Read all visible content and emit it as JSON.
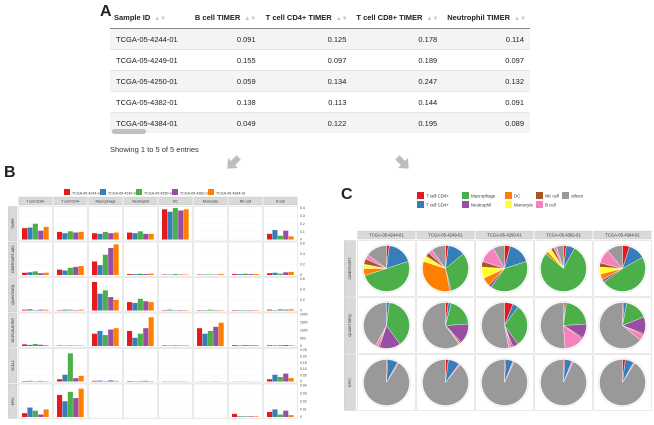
{
  "panel_letters": {
    "a": "A",
    "b": "B",
    "c": "C"
  },
  "table": {
    "columns": [
      "Sample ID",
      "B cell TIMER",
      "T cell CD4+ TIMER",
      "T cell CD8+ TIMER",
      "Neutrophil TIMER"
    ],
    "rows": [
      [
        "TCGA-05-4244-01",
        "0.091",
        "0.125",
        "0.178",
        "0.114"
      ],
      [
        "TCGA-05-4249-01",
        "0.155",
        "0.097",
        "0.189",
        "0.097"
      ],
      [
        "TCGA-05-4250-01",
        "0.059",
        "0.134",
        "0.247",
        "0.132"
      ],
      [
        "TCGA-05-4382-01",
        "0.138",
        "0.113",
        "0.144",
        "0.091"
      ],
      [
        "TCGA-05-4384-01",
        "0.049",
        "0.122",
        "0.195",
        "0.089"
      ]
    ],
    "info": "Showing 1 to 5 of 5 entries"
  },
  "chart_data": [
    {
      "type": "bar",
      "name": "panel-b",
      "legend": [
        "TCGA-05-4244-01",
        "TCGA-05-4249-01",
        "TCGA-05-4250-01",
        "TCGA-05-4382-01",
        "TCGA-05-4384-01"
      ],
      "colors": [
        "#e41a1c",
        "#377eb8",
        "#4daf4a",
        "#984ea3",
        "#ff7f00"
      ],
      "columns": [
        "T cell CD8+",
        "T cell CD4+",
        "Macrophage",
        "Neutrophil",
        "DC",
        "Monocyte",
        "NK cell",
        "B cell"
      ],
      "rows": [
        {
          "method": "TIMER",
          "ticks": [
            "0.4",
            "0.3",
            "0.2",
            "0.1",
            "0"
          ],
          "ymax": 0.5,
          "values": [
            [
              0.18,
              0.19,
              0.25,
              0.14,
              0.2
            ],
            [
              0.12,
              0.1,
              0.13,
              0.11,
              0.12
            ],
            [
              0.1,
              0.09,
              0.12,
              0.1,
              0.11
            ],
            [
              0.11,
              0.1,
              0.13,
              0.09,
              0.09
            ],
            [
              0.48,
              0.44,
              0.5,
              0.46,
              0.48
            ],
            [
              0,
              0,
              0,
              0,
              0
            ],
            [
              0,
              0,
              0,
              0,
              0
            ],
            [
              0.09,
              0.15,
              0.06,
              0.14,
              0.05
            ]
          ]
        },
        {
          "method": "CIBERSORT-ABS",
          "ticks": [
            "0.6",
            "0.4",
            "0.2",
            "0"
          ],
          "ymax": 0.7,
          "values": [
            [
              0.05,
              0.06,
              0.08,
              0.04,
              0.05
            ],
            [
              0.12,
              0.1,
              0.16,
              0.18,
              0.2
            ],
            [
              0.3,
              0.22,
              0.45,
              0.6,
              0.68
            ],
            [
              0.02,
              0.02,
              0.03,
              0.02,
              0.03
            ],
            [
              0.01,
              0.01,
              0.02,
              0.01,
              0.01
            ],
            [
              0.01,
              0.01,
              0.01,
              0.01,
              0.02
            ],
            [
              0.02,
              0.02,
              0.03,
              0.02,
              0.02
            ],
            [
              0.04,
              0.05,
              0.03,
              0.06,
              0.07
            ]
          ]
        },
        {
          "method": "QUANTISEQ",
          "ticks": [
            "0.6",
            "0.4",
            "0.2",
            "0"
          ],
          "ymax": 0.75,
          "values": [
            [
              0.02,
              0.03,
              0.01,
              0.02,
              0.02
            ],
            [
              0.01,
              0.02,
              0.02,
              0.01,
              0.02
            ],
            [
              0.68,
              0.4,
              0.48,
              0.32,
              0.25
            ],
            [
              0.2,
              0.18,
              0.28,
              0.22,
              0.2
            ],
            [
              0.01,
              0.02,
              0.01,
              0.01,
              0.01
            ],
            [
              0.01,
              0.01,
              0.02,
              0.01,
              0.01
            ],
            [
              0.01,
              0.01,
              0.01,
              0.01,
              0.01
            ],
            [
              0.02,
              0.01,
              0.03,
              0.02,
              0.03
            ]
          ]
        },
        {
          "method": "MCPCOUNTER",
          "ticks": [
            "2000",
            "1500",
            "1000",
            "500",
            "0"
          ],
          "ymax": 2300,
          "values": [
            [
              120,
              80,
              150,
              90,
              60
            ],
            [
              30,
              20,
              40,
              25,
              30
            ],
            [
              900,
              1100,
              800,
              1200,
              1300
            ],
            [
              1100,
              600,
              900,
              1300,
              2100
            ],
            [
              40,
              30,
              50,
              30,
              40
            ],
            [
              1300,
              900,
              1100,
              1400,
              1700
            ],
            [
              60,
              40,
              70,
              50,
              60
            ],
            [
              50,
              40,
              60,
              70,
              50
            ]
          ]
        },
        {
          "method": "XCELL",
          "ticks": [
            "0.25",
            "0.20",
            "0.15",
            "0.10",
            "0.05",
            "0"
          ],
          "ymax": 0.28,
          "values": [
            [
              0.004,
              0.006,
              0.003,
              0.005,
              0.004
            ],
            [
              0.02,
              0.06,
              0.25,
              0.03,
              0.05
            ],
            [
              0.006,
              0.008,
              0.004,
              0.01,
              0.006
            ],
            [
              0.004,
              0.003,
              0.005,
              0.006,
              0.004
            ],
            [
              0.002,
              0.002,
              0.002,
              0.002,
              0.002
            ],
            [
              0.001,
              0.002,
              0.001,
              0.002,
              0.001
            ],
            [
              0.001,
              0.001,
              0.002,
              0.001,
              0.001
            ],
            [
              0.02,
              0.06,
              0.04,
              0.07,
              0.03
            ]
          ]
        },
        {
          "method": "EPIC",
          "ticks": [
            "0.04",
            "0.03",
            "0.02",
            "0.01",
            "0"
          ],
          "ymax": 0.05,
          "values": [
            [
              0.006,
              0.015,
              0.01,
              0.004,
              0.012
            ],
            [
              0.035,
              0.025,
              0.04,
              0.03,
              0.045
            ],
            [
              0,
              0,
              0,
              0,
              0
            ],
            [
              0,
              0,
              0,
              0,
              0
            ],
            [
              0,
              0,
              0,
              0,
              0
            ],
            [
              0,
              0,
              0,
              0,
              0
            ],
            [
              0.005,
              0.001,
              0.001,
              0.001,
              0.001
            ],
            [
              0.008,
              0.012,
              0.004,
              0.01,
              0.003
            ]
          ]
        }
      ]
    },
    {
      "type": "pie",
      "name": "panel-c",
      "legend": [
        "T cell CD8+",
        "T cell CD4+",
        "Macrophage",
        "Neutrophil",
        "DC",
        "Monocyte",
        "NK cell",
        "B cell",
        "others"
      ],
      "colors": [
        "#e41a1c",
        "#377eb8",
        "#4daf4a",
        "#984ea3",
        "#ff7f00",
        "#ffff33",
        "#a65628",
        "#f781bf",
        "#999999"
      ],
      "samples": [
        "TCGA-05-4244-01",
        "TCGA-05-4249-01",
        "TCGA-05-4250-01",
        "TCGA-05-4382-01",
        "TCGA-05-4384-01"
      ],
      "rows": [
        {
          "method": "CIBERSORT",
          "values": [
            [
              0.02,
              0.18,
              0.5,
              0,
              0.05,
              0.03,
              0.04,
              0.03,
              0.15
            ],
            [
              0.02,
              0.12,
              0.32,
              0.01,
              0.33,
              0.04,
              0.03,
              0.03,
              0.1
            ],
            [
              0.04,
              0.16,
              0.4,
              0.02,
              0.06,
              0.08,
              0.04,
              0.12,
              0.08
            ],
            [
              0.02,
              0.06,
              0.78,
              0,
              0.02,
              0.03,
              0.02,
              0.02,
              0.05
            ],
            [
              0.05,
              0.12,
              0.48,
              0.02,
              0.04,
              0.05,
              0.03,
              0.1,
              0.11
            ]
          ]
        },
        {
          "method": "QUANTISEQ",
          "values": [
            [
              0,
              0.02,
              0.38,
              0.15,
              0,
              0,
              0.01,
              0.02,
              0.42
            ],
            [
              0.02,
              0.02,
              0.2,
              0.14,
              0,
              0,
              0.01,
              0.01,
              0.6
            ],
            [
              0.06,
              0.04,
              0.3,
              0.04,
              0,
              0,
              0.01,
              0.02,
              0.53
            ],
            [
              0.01,
              0.01,
              0.22,
              0.1,
              0,
              0,
              0.01,
              0.14,
              0.51
            ],
            [
              0.01,
              0.02,
              0.16,
              0.12,
              0,
              0,
              0.01,
              0.04,
              0.64
            ]
          ]
        },
        {
          "method": "EPIC",
          "values": [
            [
              0.01,
              0.07,
              0,
              0,
              0,
              0,
              0,
              0.01,
              0.91
            ],
            [
              0.02,
              0.08,
              0,
              0,
              0,
              0,
              0,
              0.01,
              0.89
            ],
            [
              0.01,
              0.05,
              0,
              0,
              0,
              0,
              0,
              0.01,
              0.93
            ],
            [
              0.01,
              0.05,
              0,
              0,
              0,
              0,
              0,
              0.01,
              0.93
            ],
            [
              0.02,
              0.06,
              0,
              0,
              0,
              0,
              0,
              0.01,
              0.91
            ]
          ]
        }
      ]
    }
  ]
}
